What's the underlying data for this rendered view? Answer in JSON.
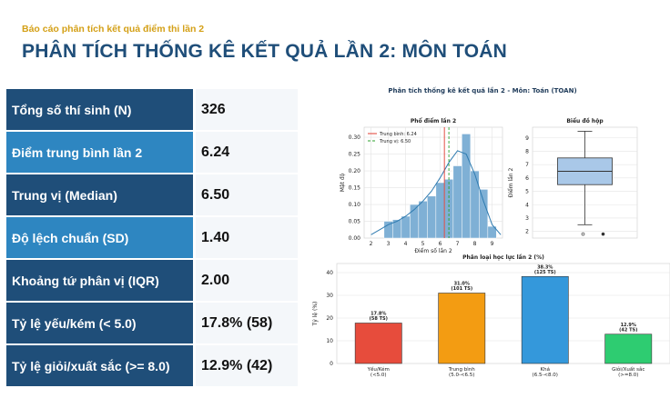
{
  "header": {
    "kicker": "Báo cáo phân tích kết quả điểm thi lần 2",
    "title": "PHÂN TÍCH THỐNG KÊ KẾT QUẢ LẦN 2: MÔN TOÁN"
  },
  "table": {
    "rows": [
      [
        "Tổng số thí sinh (N)",
        "326"
      ],
      [
        "Điểm trung bình lần 2",
        "6.24"
      ],
      [
        "Trung vị (Median)",
        "6.50"
      ],
      [
        "Độ lệch chuẩn (SD)",
        "1.40"
      ],
      [
        "Khoảng tứ phân vị (IQR)",
        "2.00"
      ],
      [
        "Tỷ lệ yếu/kém (< 5.0)",
        "17.8% (58)"
      ],
      [
        "Tỷ lệ giỏi/xuất sắc (>= 8.0)",
        "12.9% (42)"
      ]
    ]
  },
  "figure_title": "Phân tích thống kê kết quả lần 2 - Môn: Toán (TOAN)",
  "chart_data": [
    {
      "type": "histogram",
      "title": "Phổ điểm lần 2",
      "x_label": "Điểm số lần 2",
      "y_label": "Mật độ",
      "color": "#7fb0d5",
      "bins": [
        2.75,
        3.25,
        3.75,
        4.25,
        4.75,
        5.25,
        5.75,
        6.25,
        6.75,
        7.25,
        7.75,
        8.25,
        8.75,
        9.25
      ],
      "values": [
        0.05,
        0.055,
        0.065,
        0.1,
        0.11,
        0.125,
        0.165,
        0.175,
        0.215,
        0.31,
        0.2,
        0.145,
        0.035
      ],
      "kde": {
        "color": "#2f7bb0",
        "x": [
          2,
          2.5,
          3,
          3.5,
          4,
          4.5,
          5,
          5.5,
          6,
          6.5,
          7,
          7.5,
          8,
          8.5,
          9,
          9.5
        ],
        "values": [
          0.01,
          0.025,
          0.04,
          0.05,
          0.065,
          0.085,
          0.11,
          0.14,
          0.18,
          0.225,
          0.26,
          0.25,
          0.19,
          0.11,
          0.04,
          0.01
        ]
      },
      "lines": [
        {
          "name": "Trung bình: 6.24",
          "value": 6.24,
          "color": "#e03c31",
          "dash": false
        },
        {
          "name": "Trung vị: 6.50",
          "value": 6.5,
          "color": "#2ca02c",
          "dash": true
        }
      ],
      "xlim": [
        1.6,
        9.6
      ],
      "xticks": [
        2,
        3,
        4,
        5,
        6,
        7,
        8,
        9
      ],
      "ylim": [
        0,
        0.33
      ],
      "yticks": [
        {
          "value": 0,
          "label": "0.00"
        },
        {
          "value": 0.05,
          "label": "0.05"
        },
        {
          "value": 0.1,
          "label": "0.10"
        },
        {
          "value": 0.15,
          "label": "0.15"
        },
        {
          "value": 0.2,
          "label": "0.20"
        },
        {
          "value": 0.25,
          "label": "0.25"
        },
        {
          "value": 0.3,
          "label": "0.30"
        }
      ],
      "grid": true
    },
    {
      "type": "box",
      "title": "Biểu đồ hộp",
      "y_label": "Điểm lần 2",
      "color": "#a9c8e8",
      "whisker_low": 2.5,
      "q1": 5.5,
      "median": 6.5,
      "q3": 7.5,
      "whisker_high": 9.5,
      "outliers": [
        1.8,
        1.8
      ],
      "ylim": [
        1.5,
        9.8
      ],
      "yticks": [
        2,
        3,
        4,
        5,
        6,
        7,
        8,
        9
      ],
      "grid": true
    },
    {
      "type": "bar",
      "title": "Phân loại học lực lần 2 (%)",
      "y_label": "Tỷ lệ (%)",
      "categories": [
        "Yếu/Kém\n(<5.0)",
        "Trung bình\n(5.0-<6.5)",
        "Khá\n(6.5-<8.0)",
        "Giỏi/Xuất sắc\n(>=8.0)"
      ],
      "values": [
        17.8,
        31.0,
        38.3,
        12.9
      ],
      "value_labels": [
        "17.8%\n(58 TS)",
        "31.0%\n(101 TS)",
        "38.3%\n(125 TS)",
        "12.9%\n(42 TS)"
      ],
      "colors": [
        "#e74c3c",
        "#f39c12",
        "#3498db",
        "#2ecc71"
      ],
      "ylim": [
        0,
        44
      ],
      "yticks": [
        0,
        10,
        20,
        30,
        40
      ],
      "grid": true
    }
  ]
}
